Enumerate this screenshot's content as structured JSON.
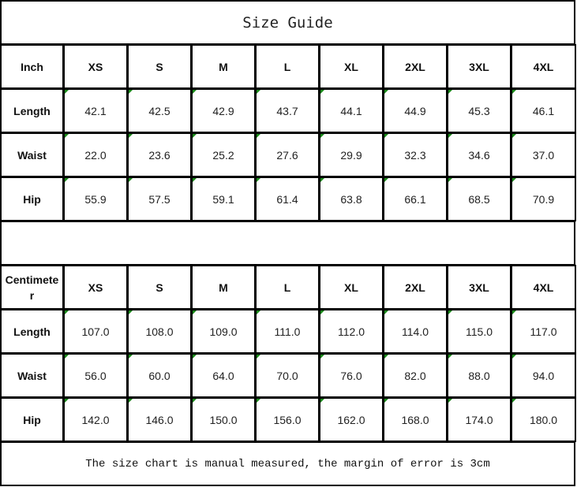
{
  "title": "Size Guide",
  "sizes": [
    "XS",
    "S",
    "M",
    "L",
    "XL",
    "2XL",
    "3XL",
    "4XL"
  ],
  "inch_table": {
    "unit": "Inch",
    "rows": [
      {
        "label": "Length",
        "values": [
          "42.1",
          "42.5",
          "42.9",
          "43.7",
          "44.1",
          "44.9",
          "45.3",
          "46.1"
        ]
      },
      {
        "label": "Waist",
        "values": [
          "22.0",
          "23.6",
          "25.2",
          "27.6",
          "29.9",
          "32.3",
          "34.6",
          "37.0"
        ]
      },
      {
        "label": "Hip",
        "values": [
          "55.9",
          "57.5",
          "59.1",
          "61.4",
          "63.8",
          "66.1",
          "68.5",
          "70.9"
        ]
      }
    ]
  },
  "cm_table": {
    "unit": "Centimeter",
    "rows": [
      {
        "label": "Length",
        "values": [
          "107.0",
          "108.0",
          "109.0",
          "111.0",
          "112.0",
          "114.0",
          "115.0",
          "117.0"
        ]
      },
      {
        "label": "Waist",
        "values": [
          "56.0",
          "60.0",
          "64.0",
          "70.0",
          "76.0",
          "82.0",
          "88.0",
          "94.0"
        ]
      },
      {
        "label": "Hip",
        "values": [
          "142.0",
          "146.0",
          "150.0",
          "156.0",
          "162.0",
          "168.0",
          "174.0",
          "180.0"
        ]
      }
    ]
  },
  "note": "The size chart is manual measured, the margin of error is 3cm",
  "colors": {
    "border": "#000000",
    "cell_marker": "#1a8a1a"
  }
}
